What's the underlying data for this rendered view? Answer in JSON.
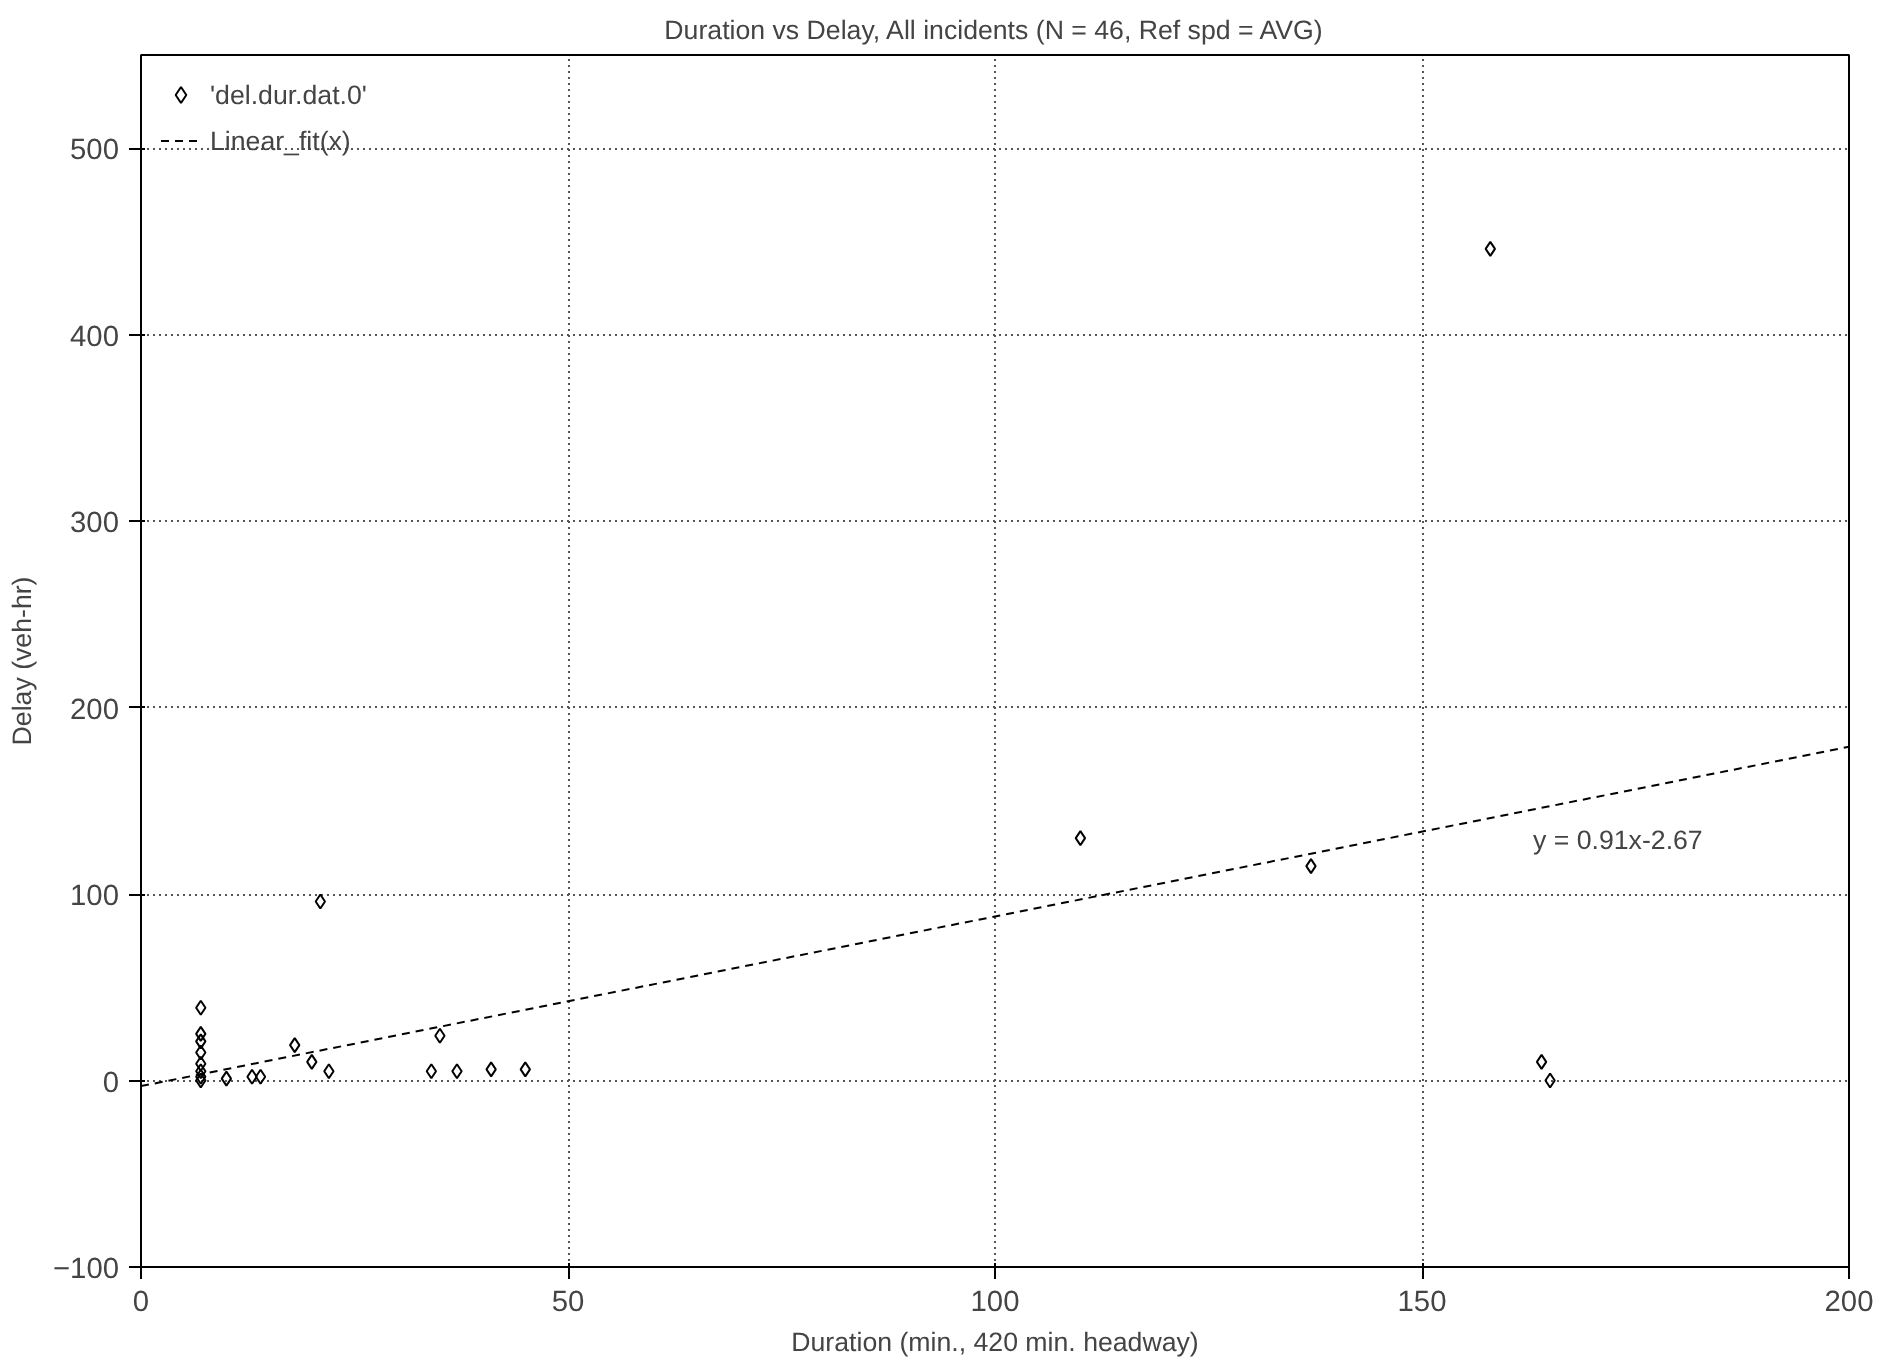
{
  "chart_data": {
    "type": "scatter",
    "title": "Duration vs Delay, All incidents (N = 46, Ref spd = AVG)",
    "xlabel": "Duration (min., 420 min. headway)",
    "ylabel": "Delay (veh-hr)",
    "series": [
      {
        "name": "'del.dur.dat.0'",
        "color": "#000000",
        "x": [
          7,
          7,
          7,
          7,
          7,
          7,
          7,
          7,
          10,
          13,
          14,
          18,
          20,
          21,
          22,
          34,
          35,
          37,
          41,
          45,
          110,
          137,
          158,
          164,
          165
        ],
        "values": [
          39,
          25,
          21,
          15,
          9,
          5,
          2,
          0,
          1,
          2,
          2,
          19,
          10,
          96,
          5,
          5,
          24,
          5,
          6,
          6,
          130,
          115,
          446,
          10,
          0
        ]
      },
      {
        "name": "Linear_fit(x)",
        "type": "line",
        "color": "#000000",
        "line_style": "dashed",
        "marker": "none",
        "x": [
          0,
          200
        ],
        "values": [
          -3,
          179
        ]
      }
    ],
    "annotations": [
      "y = 0.91x-2.67"
    ],
    "xlim": [
      0,
      200
    ],
    "ylim": [
      -100,
      550
    ],
    "xticks": [
      0,
      50,
      100,
      150,
      200
    ],
    "yticks": [
      -100,
      0,
      100,
      200,
      300,
      400,
      500
    ],
    "grid": true,
    "legend": "top left",
    "marker": "diamond"
  }
}
